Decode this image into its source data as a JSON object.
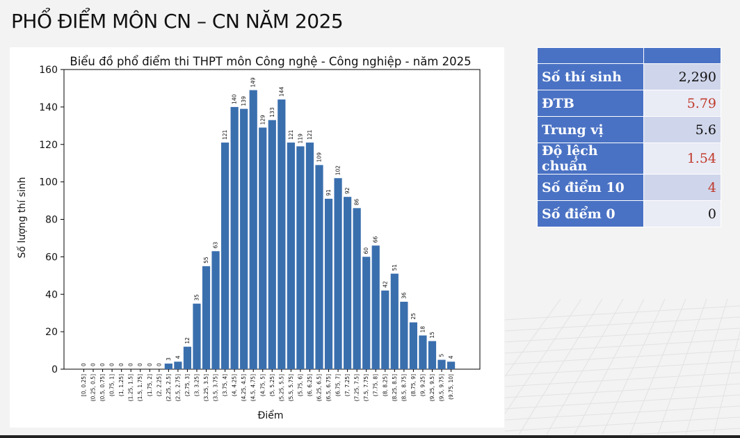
{
  "slide": {
    "title": "PHỔ ĐIỂM MÔN CN – CN NĂM 2025"
  },
  "stats": {
    "rows": [
      {
        "label": "Số thí sinh",
        "value": "2,290",
        "highlight": false
      },
      {
        "label": "ĐTB",
        "value": "5.79",
        "highlight": true
      },
      {
        "label": "Trung vị",
        "value": "5.6",
        "highlight": false
      },
      {
        "label": "Độ lệch chuẩn",
        "value": "1.54",
        "highlight": true
      },
      {
        "label": "Số điểm 10",
        "value": "4",
        "highlight": true
      },
      {
        "label": "Số điểm 0",
        "value": "0",
        "highlight": false
      }
    ]
  },
  "colors": {
    "bar": "#3a6fae",
    "table_header": "#4a72c4",
    "highlight_value": "#c0392b"
  },
  "chart_data": {
    "type": "bar",
    "title": "Biểu đồ phổ điểm thi THPT môn Công nghệ - Công nghiệp - năm 2025",
    "xlabel": "Điểm",
    "ylabel": "Số lượng thí sinh",
    "ylim": [
      0,
      160
    ],
    "yticks": [
      0,
      20,
      40,
      60,
      80,
      100,
      120,
      140,
      160
    ],
    "categories": [
      "[0, 0.25]",
      "(0.25, 0.5]",
      "(0.5, 0.75]",
      "(0.75, 1]",
      "(1, 1.25]",
      "(1.25, 1.5]",
      "(1.5, 1.75]",
      "(1.75, 2]",
      "(2, 2.25]",
      "(2.25, 2.5]",
      "(2.5, 2.75]",
      "(2.75, 3]",
      "(3, 3.25]",
      "(3.25, 3.5]",
      "(3.5, 3.75]",
      "(3.75, 4]",
      "(4, 4.25]",
      "(4.25, 4.5]",
      "(4.5, 4.75]",
      "(4.75, 5]",
      "(5, 5.25]",
      "(5.25, 5.5]",
      "(5.5, 5.75]",
      "(5.75, 6]",
      "(6, 6.25]",
      "(6.25, 6.5]",
      "(6.5, 6.75]",
      "(6.75, 7]",
      "(7, 7.25]",
      "(7.25, 7.5]",
      "(7.5, 7.75]",
      "(7.75, 8]",
      "(8, 8.25]",
      "(8.25, 8.5]",
      "(8.5, 8.75]",
      "(8.75, 9]",
      "(9, 9.25]",
      "(9.25, 9.5]",
      "(9.5, 9.75]",
      "(9.75, 10]"
    ],
    "values": [
      0,
      0,
      0,
      0,
      0,
      0,
      0,
      0,
      0,
      3,
      4,
      12,
      35,
      55,
      63,
      121,
      140,
      139,
      149,
      129,
      133,
      144,
      121,
      119,
      121,
      109,
      91,
      102,
      92,
      86,
      60,
      66,
      42,
      51,
      36,
      25,
      18,
      15,
      5,
      4
    ],
    "grid": false
  }
}
